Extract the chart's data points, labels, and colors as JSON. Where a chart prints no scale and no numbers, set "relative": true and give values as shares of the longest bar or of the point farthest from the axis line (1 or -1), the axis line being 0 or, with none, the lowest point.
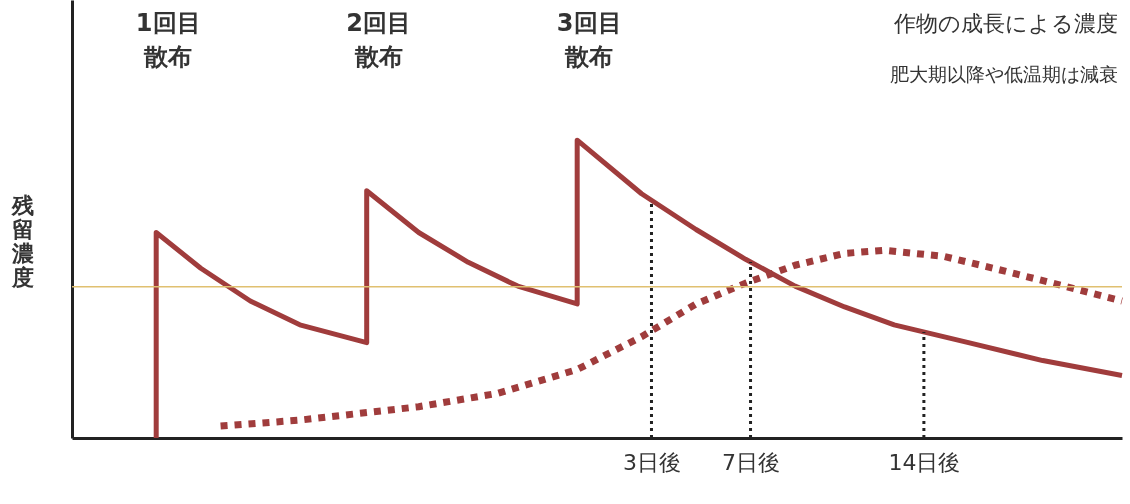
{
  "chart_data": {
    "type": "line",
    "relative": true,
    "ylabel": "残留濃度",
    "xlim": [
      -20.4,
      22
    ],
    "xticks": [
      {
        "value": 3,
        "label": "3日後"
      },
      {
        "value": 7,
        "label": "7日後"
      },
      {
        "value": 14,
        "label": "14日後"
      }
    ],
    "series": [
      {
        "color": "#a03c3c",
        "line_style": "solid",
        "x": [
          -17,
          -17,
          -15.2,
          -13.2,
          -11.2,
          -8.5,
          -8.5,
          -6.4,
          -4.4,
          -2.4,
          0,
          0,
          2.6,
          4.8,
          6.8,
          8.8,
          10.8,
          12.8,
          15.8,
          18.8,
          22
        ],
        "values": [
          0,
          0.69,
          0.57,
          0.46,
          0.38,
          0.32,
          0.83,
          0.69,
          0.59,
          0.51,
          0.45,
          1.0,
          0.82,
          0.7,
          0.6,
          0.51,
          0.44,
          0.38,
          0.32,
          0.26,
          0.21
        ]
      },
      {
        "color": "#a03c3c",
        "line_style": "dotted",
        "x": [
          -14.4,
          -11.2,
          -6.4,
          -3.2,
          0,
          2.6,
          4.8,
          6.8,
          8.8,
          10.8,
          12.4,
          14.8,
          16.8,
          19.2,
          22
        ],
        "values": [
          0.04,
          0.06,
          0.105,
          0.15,
          0.23,
          0.34,
          0.45,
          0.52,
          0.58,
          0.62,
          0.63,
          0.61,
          0.57,
          0.52,
          0.46
        ]
      }
    ],
    "ref_lines": [
      {
        "axis": "y",
        "value": 0.508,
        "color": "#e0c070",
        "line_style": "solid"
      },
      {
        "axis": "x",
        "value": 3,
        "color": "#222222",
        "line_style": "dotted"
      },
      {
        "axis": "x",
        "value": 7,
        "color": "#222222",
        "line_style": "dotted"
      },
      {
        "axis": "x",
        "value": 14,
        "color": "#222222",
        "line_style": "dotted"
      }
    ],
    "annotations": [
      "1回目",
      "散布",
      "2回目",
      "散布",
      "3回目",
      "散布",
      "作物の成長による濃度",
      "肥大期以降や低温期は減衰"
    ],
    "grid": false
  }
}
